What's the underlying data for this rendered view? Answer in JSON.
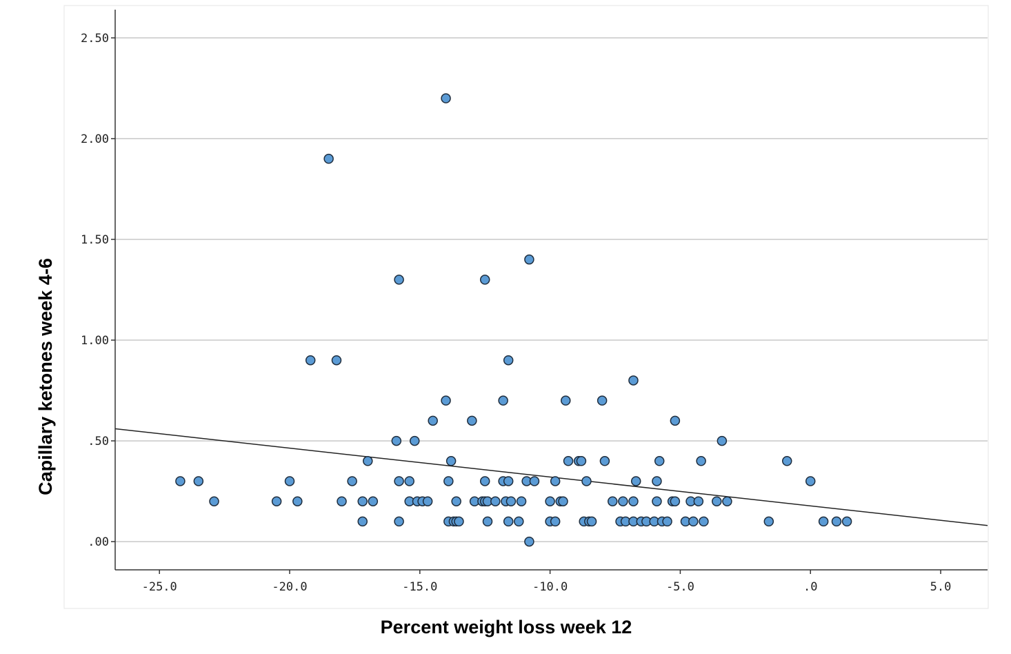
{
  "chart_data": {
    "type": "scatter",
    "title": "",
    "xlabel": "Percent weight loss week 12",
    "ylabel": "Capillary ketones week 4-6",
    "xlim": [
      -26.7,
      6.8
    ],
    "ylim": [
      -0.14,
      2.64
    ],
    "x_ticks": [
      -25,
      -20,
      -15,
      -10,
      -5,
      0,
      5
    ],
    "x_tick_labels": [
      "-25.0",
      "-20.0",
      "-15.0",
      "-10.0",
      "-5.0",
      ".0",
      "5.0"
    ],
    "y_ticks": [
      0,
      0.5,
      1,
      1.5,
      2,
      2.5
    ],
    "y_tick_labels": [
      ".00",
      ".50",
      "1.00",
      "1.50",
      "2.00",
      "2.50"
    ],
    "grid": "horizontal",
    "fit_line": {
      "x": [
        -26.7,
        6.8
      ],
      "y": [
        0.56,
        0.08
      ]
    },
    "colors": {
      "point_fill": "#5b9bd5",
      "point_stroke": "#1f2d3d",
      "grid": "#c8c8c8",
      "axis": "#333333",
      "fit": "#222222"
    },
    "points": [
      {
        "x": -24.2,
        "y": 0.3
      },
      {
        "x": -23.5,
        "y": 0.3
      },
      {
        "x": -22.9,
        "y": 0.2
      },
      {
        "x": -20.5,
        "y": 0.2
      },
      {
        "x": -20.0,
        "y": 0.3
      },
      {
        "x": -19.7,
        "y": 0.2
      },
      {
        "x": -19.2,
        "y": 0.9
      },
      {
        "x": -18.5,
        "y": 1.9
      },
      {
        "x": -18.2,
        "y": 0.9
      },
      {
        "x": -18.0,
        "y": 0.2
      },
      {
        "x": -17.6,
        "y": 0.3
      },
      {
        "x": -17.2,
        "y": 0.1
      },
      {
        "x": -17.2,
        "y": 0.2
      },
      {
        "x": -17.0,
        "y": 0.4
      },
      {
        "x": -16.8,
        "y": 0.2
      },
      {
        "x": -15.9,
        "y": 0.5
      },
      {
        "x": -15.8,
        "y": 1.3
      },
      {
        "x": -15.8,
        "y": 0.3
      },
      {
        "x": -15.8,
        "y": 0.1
      },
      {
        "x": -15.4,
        "y": 0.3
      },
      {
        "x": -15.4,
        "y": 0.2
      },
      {
        "x": -15.2,
        "y": 0.5
      },
      {
        "x": -15.1,
        "y": 0.2
      },
      {
        "x": -14.9,
        "y": 0.2
      },
      {
        "x": -14.7,
        "y": 0.2
      },
      {
        "x": -14.5,
        "y": 0.6
      },
      {
        "x": -14.0,
        "y": 2.2
      },
      {
        "x": -14.0,
        "y": 0.7
      },
      {
        "x": -13.9,
        "y": 0.3
      },
      {
        "x": -13.9,
        "y": 0.1
      },
      {
        "x": -13.8,
        "y": 0.4
      },
      {
        "x": -13.7,
        "y": 0.1
      },
      {
        "x": -13.6,
        "y": 0.2
      },
      {
        "x": -13.6,
        "y": 0.1
      },
      {
        "x": -13.5,
        "y": 0.1
      },
      {
        "x": -13.0,
        "y": 0.6
      },
      {
        "x": -12.9,
        "y": 0.2
      },
      {
        "x": -12.6,
        "y": 0.2
      },
      {
        "x": -12.5,
        "y": 1.3
      },
      {
        "x": -12.5,
        "y": 0.3
      },
      {
        "x": -12.5,
        "y": 0.2
      },
      {
        "x": -12.4,
        "y": 0.2
      },
      {
        "x": -12.4,
        "y": 0.1
      },
      {
        "x": -12.1,
        "y": 0.2
      },
      {
        "x": -11.8,
        "y": 0.7
      },
      {
        "x": -11.8,
        "y": 0.3
      },
      {
        "x": -11.7,
        "y": 0.2
      },
      {
        "x": -11.6,
        "y": 0.3
      },
      {
        "x": -11.6,
        "y": 0.9
      },
      {
        "x": -11.5,
        "y": 0.2
      },
      {
        "x": -11.6,
        "y": 0.1
      },
      {
        "x": -11.2,
        "y": 0.1
      },
      {
        "x": -11.1,
        "y": 0.2
      },
      {
        "x": -10.9,
        "y": 0.3
      },
      {
        "x": -10.8,
        "y": 1.4
      },
      {
        "x": -10.8,
        "y": 0.0
      },
      {
        "x": -10.6,
        "y": 0.3
      },
      {
        "x": -10.0,
        "y": 0.2
      },
      {
        "x": -10.0,
        "y": 0.1
      },
      {
        "x": -9.8,
        "y": 0.3
      },
      {
        "x": -9.8,
        "y": 0.1
      },
      {
        "x": -9.6,
        "y": 0.2
      },
      {
        "x": -9.5,
        "y": 0.2
      },
      {
        "x": -9.4,
        "y": 0.7
      },
      {
        "x": -9.3,
        "y": 0.4
      },
      {
        "x": -8.9,
        "y": 0.4
      },
      {
        "x": -8.8,
        "y": 0.4
      },
      {
        "x": -8.7,
        "y": 0.1
      },
      {
        "x": -8.6,
        "y": 0.3
      },
      {
        "x": -8.5,
        "y": 0.1
      },
      {
        "x": -8.4,
        "y": 0.1
      },
      {
        "x": -8.0,
        "y": 0.7
      },
      {
        "x": -7.9,
        "y": 0.4
      },
      {
        "x": -7.6,
        "y": 0.2
      },
      {
        "x": -7.3,
        "y": 0.1
      },
      {
        "x": -7.2,
        "y": 0.2
      },
      {
        "x": -7.1,
        "y": 0.1
      },
      {
        "x": -6.8,
        "y": 0.8
      },
      {
        "x": -6.8,
        "y": 0.2
      },
      {
        "x": -6.8,
        "y": 0.1
      },
      {
        "x": -6.7,
        "y": 0.3
      },
      {
        "x": -6.5,
        "y": 0.1
      },
      {
        "x": -6.3,
        "y": 0.1
      },
      {
        "x": -6.0,
        "y": 0.1
      },
      {
        "x": -5.9,
        "y": 0.2
      },
      {
        "x": -5.9,
        "y": 0.3
      },
      {
        "x": -5.8,
        "y": 0.4
      },
      {
        "x": -5.7,
        "y": 0.1
      },
      {
        "x": -5.5,
        "y": 0.1
      },
      {
        "x": -5.3,
        "y": 0.2
      },
      {
        "x": -5.2,
        "y": 0.2
      },
      {
        "x": -5.2,
        "y": 0.6
      },
      {
        "x": -4.8,
        "y": 0.1
      },
      {
        "x": -4.6,
        "y": 0.2
      },
      {
        "x": -4.5,
        "y": 0.1
      },
      {
        "x": -4.3,
        "y": 0.2
      },
      {
        "x": -4.2,
        "y": 0.4
      },
      {
        "x": -4.1,
        "y": 0.1
      },
      {
        "x": -3.6,
        "y": 0.2
      },
      {
        "x": -3.4,
        "y": 0.5
      },
      {
        "x": -3.2,
        "y": 0.2
      },
      {
        "x": -1.6,
        "y": 0.1
      },
      {
        "x": -0.9,
        "y": 0.4
      },
      {
        "x": 0.0,
        "y": 0.3
      },
      {
        "x": 0.5,
        "y": 0.1
      },
      {
        "x": 1.0,
        "y": 0.1
      },
      {
        "x": 1.4,
        "y": 0.1
      }
    ]
  }
}
